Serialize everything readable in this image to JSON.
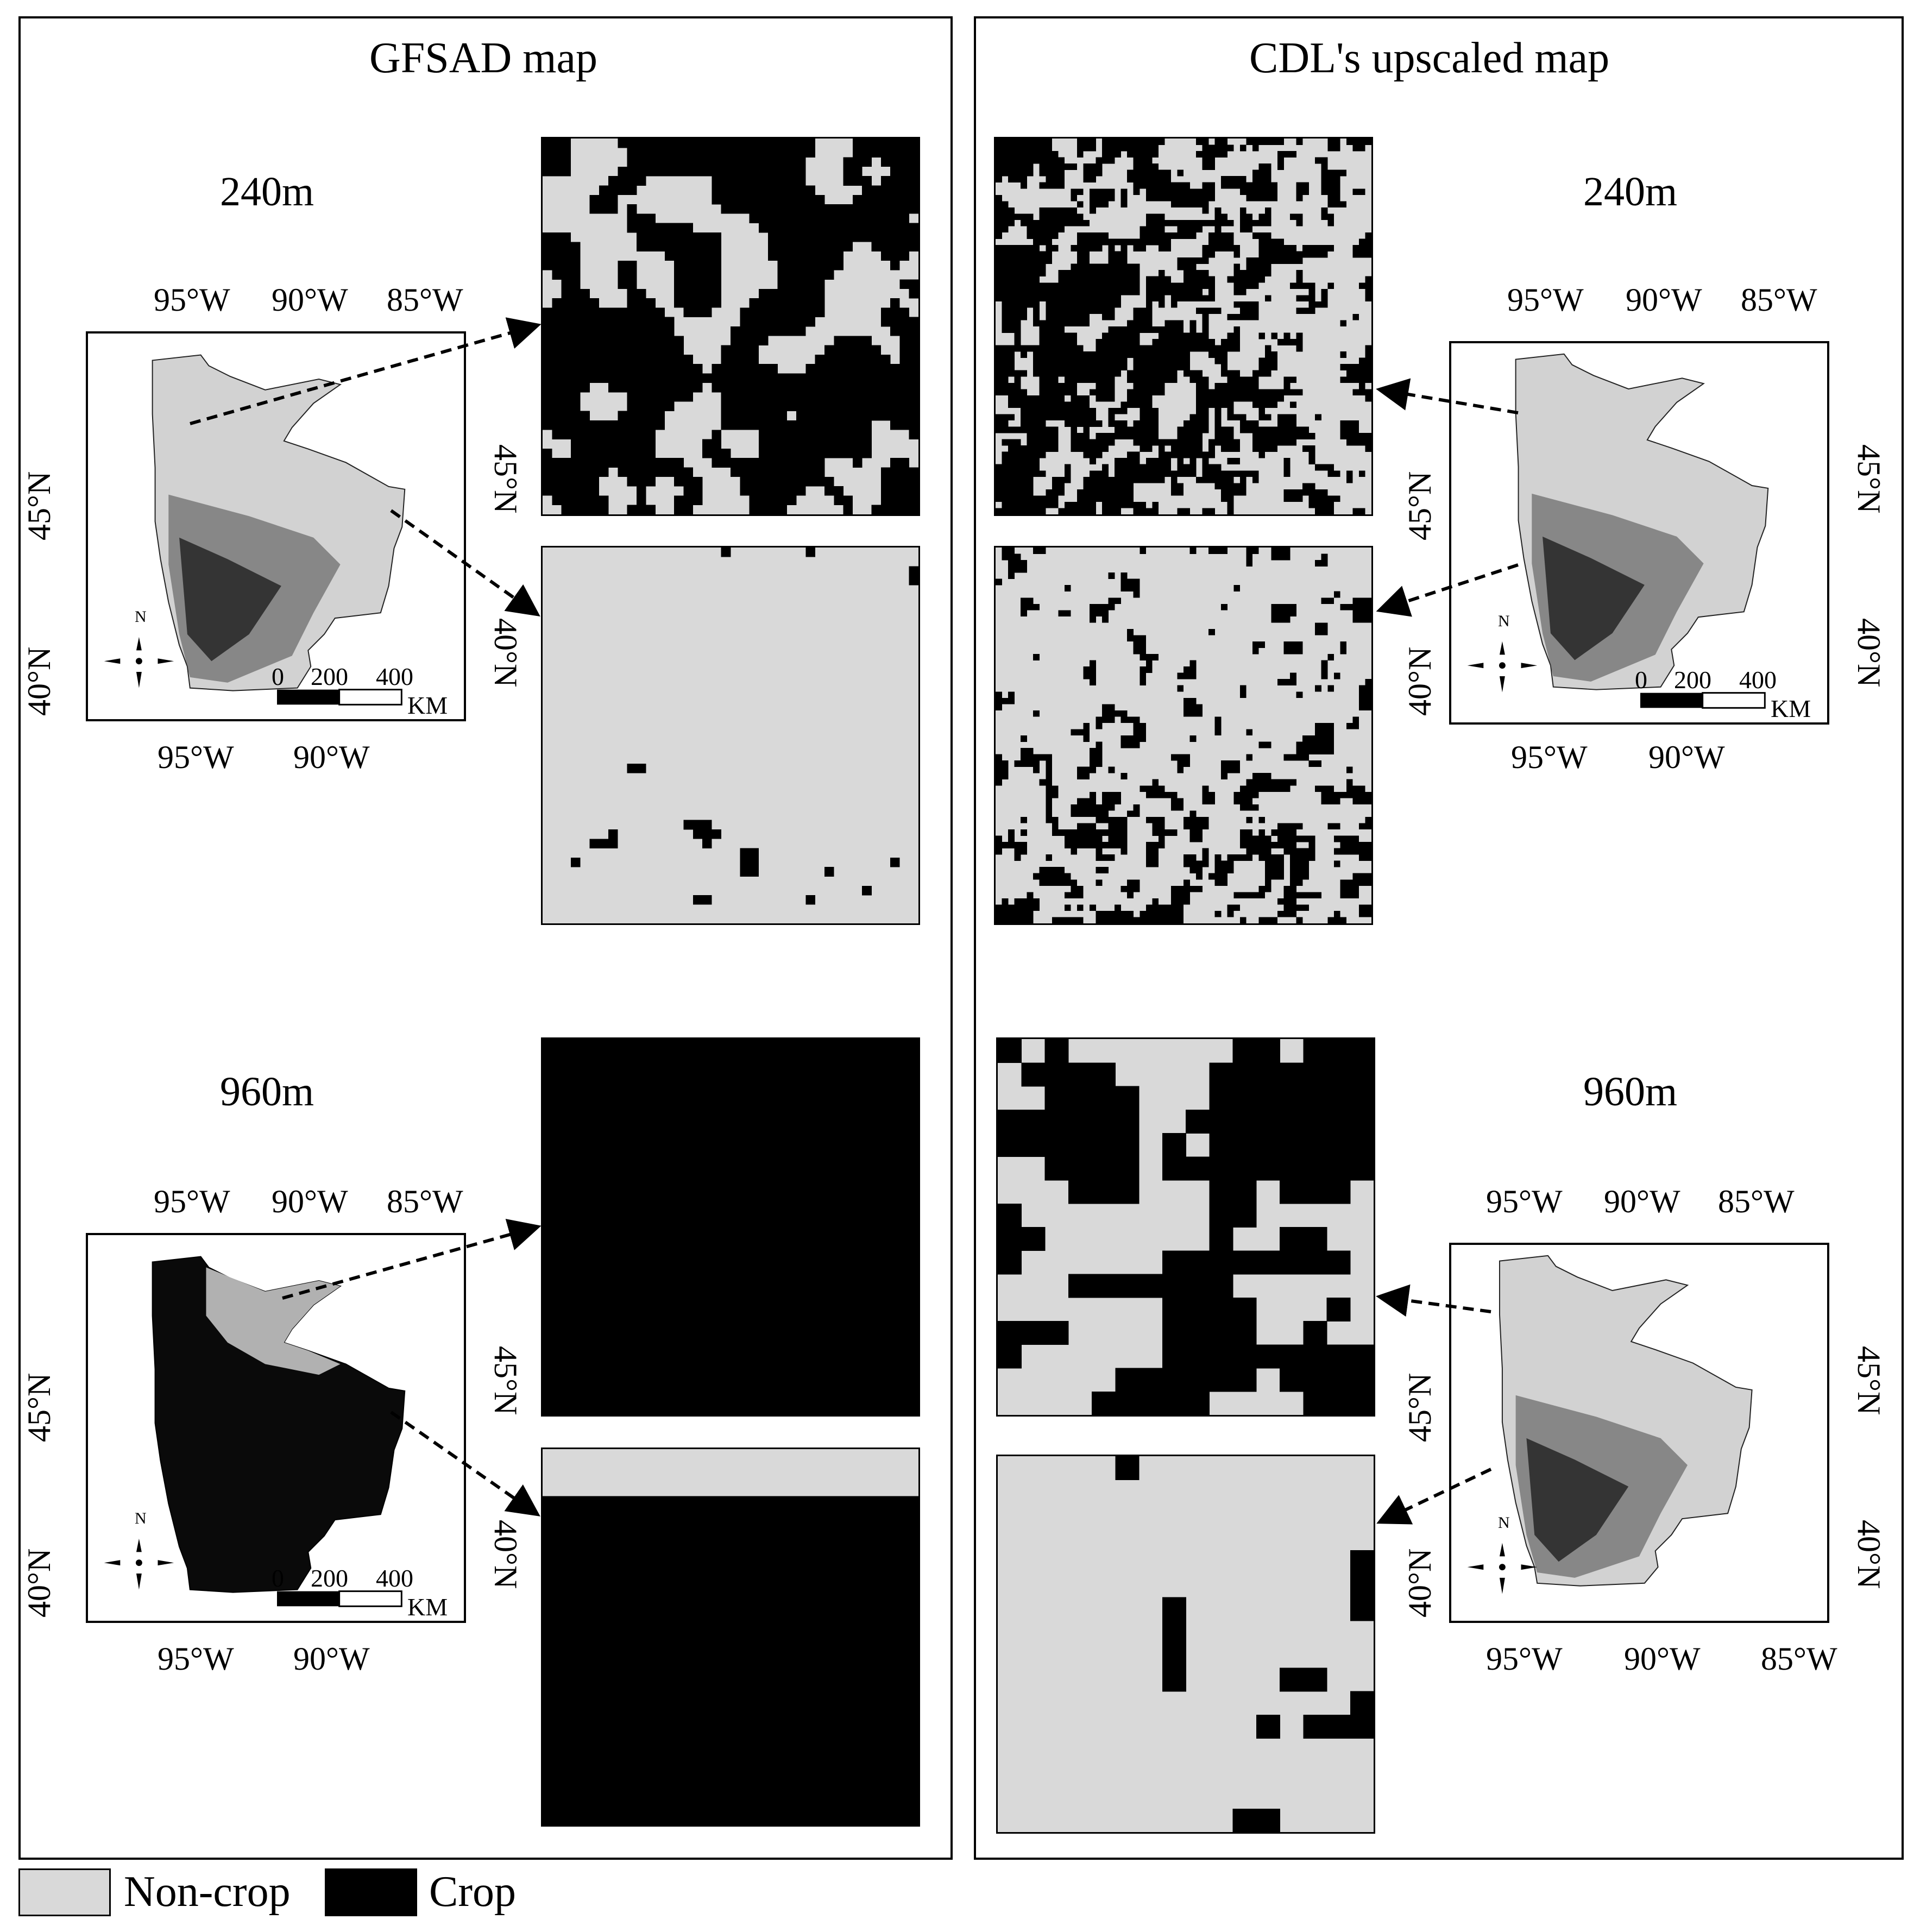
{
  "colors": {
    "non_crop": "#d9d9d9",
    "crop": "#000000"
  },
  "panels": {
    "left": {
      "title": "GFSAD map"
    },
    "right": {
      "title": "CDL's upscaled map"
    }
  },
  "resolutions": {
    "r240": "240m",
    "r960": "960m"
  },
  "ticks": {
    "lon_95": "95°W",
    "lon_90": "90°W",
    "lon_85": "85°W",
    "lat_45": "45°N",
    "lat_40": "40°N"
  },
  "scalebar": {
    "n0": "0",
    "n200": "200",
    "n400": "400",
    "unit": "KM"
  },
  "north": "N",
  "legend": {
    "non_crop": "Non-crop",
    "crop": "Crop"
  },
  "icons": [
    "north-arrow-icon"
  ]
}
